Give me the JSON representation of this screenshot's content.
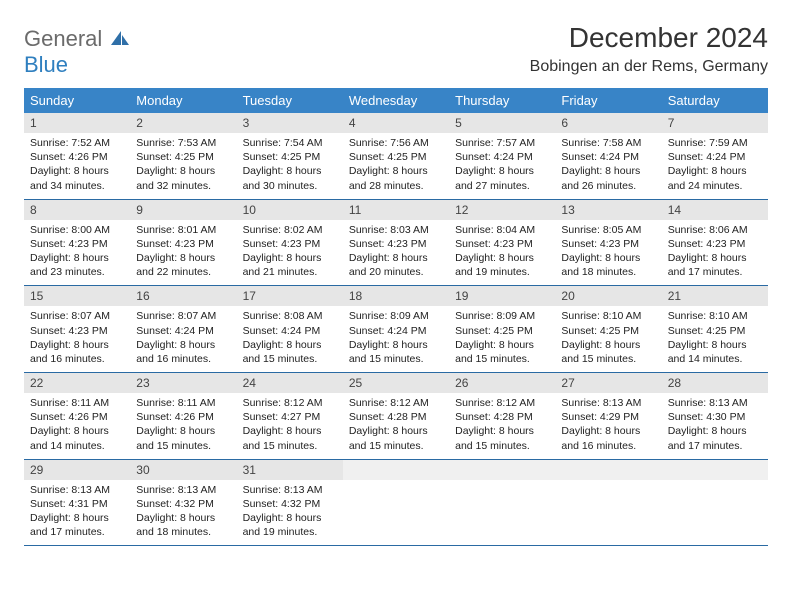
{
  "logo": {
    "line1": "General",
    "line2": "Blue"
  },
  "title": "December 2024",
  "subtitle": "Bobingen an der Rems, Germany",
  "colors": {
    "header_bg": "#3884c7",
    "header_text": "#ffffff",
    "daynum_bg": "#e6e6e6",
    "week_border": "#2a6aa3",
    "logo_gray": "#6b6b6b",
    "logo_blue": "#2f7fbf"
  },
  "days": [
    "Sunday",
    "Monday",
    "Tuesday",
    "Wednesday",
    "Thursday",
    "Friday",
    "Saturday"
  ],
  "weeks": [
    [
      {
        "n": "1",
        "sr": "7:52 AM",
        "ss": "4:26 PM",
        "dl": "8 hours and 34 minutes."
      },
      {
        "n": "2",
        "sr": "7:53 AM",
        "ss": "4:25 PM",
        "dl": "8 hours and 32 minutes."
      },
      {
        "n": "3",
        "sr": "7:54 AM",
        "ss": "4:25 PM",
        "dl": "8 hours and 30 minutes."
      },
      {
        "n": "4",
        "sr": "7:56 AM",
        "ss": "4:25 PM",
        "dl": "8 hours and 28 minutes."
      },
      {
        "n": "5",
        "sr": "7:57 AM",
        "ss": "4:24 PM",
        "dl": "8 hours and 27 minutes."
      },
      {
        "n": "6",
        "sr": "7:58 AM",
        "ss": "4:24 PM",
        "dl": "8 hours and 26 minutes."
      },
      {
        "n": "7",
        "sr": "7:59 AM",
        "ss": "4:24 PM",
        "dl": "8 hours and 24 minutes."
      }
    ],
    [
      {
        "n": "8",
        "sr": "8:00 AM",
        "ss": "4:23 PM",
        "dl": "8 hours and 23 minutes."
      },
      {
        "n": "9",
        "sr": "8:01 AM",
        "ss": "4:23 PM",
        "dl": "8 hours and 22 minutes."
      },
      {
        "n": "10",
        "sr": "8:02 AM",
        "ss": "4:23 PM",
        "dl": "8 hours and 21 minutes."
      },
      {
        "n": "11",
        "sr": "8:03 AM",
        "ss": "4:23 PM",
        "dl": "8 hours and 20 minutes."
      },
      {
        "n": "12",
        "sr": "8:04 AM",
        "ss": "4:23 PM",
        "dl": "8 hours and 19 minutes."
      },
      {
        "n": "13",
        "sr": "8:05 AM",
        "ss": "4:23 PM",
        "dl": "8 hours and 18 minutes."
      },
      {
        "n": "14",
        "sr": "8:06 AM",
        "ss": "4:23 PM",
        "dl": "8 hours and 17 minutes."
      }
    ],
    [
      {
        "n": "15",
        "sr": "8:07 AM",
        "ss": "4:23 PM",
        "dl": "8 hours and 16 minutes."
      },
      {
        "n": "16",
        "sr": "8:07 AM",
        "ss": "4:24 PM",
        "dl": "8 hours and 16 minutes."
      },
      {
        "n": "17",
        "sr": "8:08 AM",
        "ss": "4:24 PM",
        "dl": "8 hours and 15 minutes."
      },
      {
        "n": "18",
        "sr": "8:09 AM",
        "ss": "4:24 PM",
        "dl": "8 hours and 15 minutes."
      },
      {
        "n": "19",
        "sr": "8:09 AM",
        "ss": "4:25 PM",
        "dl": "8 hours and 15 minutes."
      },
      {
        "n": "20",
        "sr": "8:10 AM",
        "ss": "4:25 PM",
        "dl": "8 hours and 15 minutes."
      },
      {
        "n": "21",
        "sr": "8:10 AM",
        "ss": "4:25 PM",
        "dl": "8 hours and 14 minutes."
      }
    ],
    [
      {
        "n": "22",
        "sr": "8:11 AM",
        "ss": "4:26 PM",
        "dl": "8 hours and 14 minutes."
      },
      {
        "n": "23",
        "sr": "8:11 AM",
        "ss": "4:26 PM",
        "dl": "8 hours and 15 minutes."
      },
      {
        "n": "24",
        "sr": "8:12 AM",
        "ss": "4:27 PM",
        "dl": "8 hours and 15 minutes."
      },
      {
        "n": "25",
        "sr": "8:12 AM",
        "ss": "4:28 PM",
        "dl": "8 hours and 15 minutes."
      },
      {
        "n": "26",
        "sr": "8:12 AM",
        "ss": "4:28 PM",
        "dl": "8 hours and 15 minutes."
      },
      {
        "n": "27",
        "sr": "8:13 AM",
        "ss": "4:29 PM",
        "dl": "8 hours and 16 minutes."
      },
      {
        "n": "28",
        "sr": "8:13 AM",
        "ss": "4:30 PM",
        "dl": "8 hours and 17 minutes."
      }
    ],
    [
      {
        "n": "29",
        "sr": "8:13 AM",
        "ss": "4:31 PM",
        "dl": "8 hours and 17 minutes."
      },
      {
        "n": "30",
        "sr": "8:13 AM",
        "ss": "4:32 PM",
        "dl": "8 hours and 18 minutes."
      },
      {
        "n": "31",
        "sr": "8:13 AM",
        "ss": "4:32 PM",
        "dl": "8 hours and 19 minutes."
      },
      {
        "empty": true
      },
      {
        "empty": true
      },
      {
        "empty": true
      },
      {
        "empty": true
      }
    ]
  ],
  "labels": {
    "sunrise": "Sunrise:",
    "sunset": "Sunset:",
    "daylight": "Daylight:"
  }
}
